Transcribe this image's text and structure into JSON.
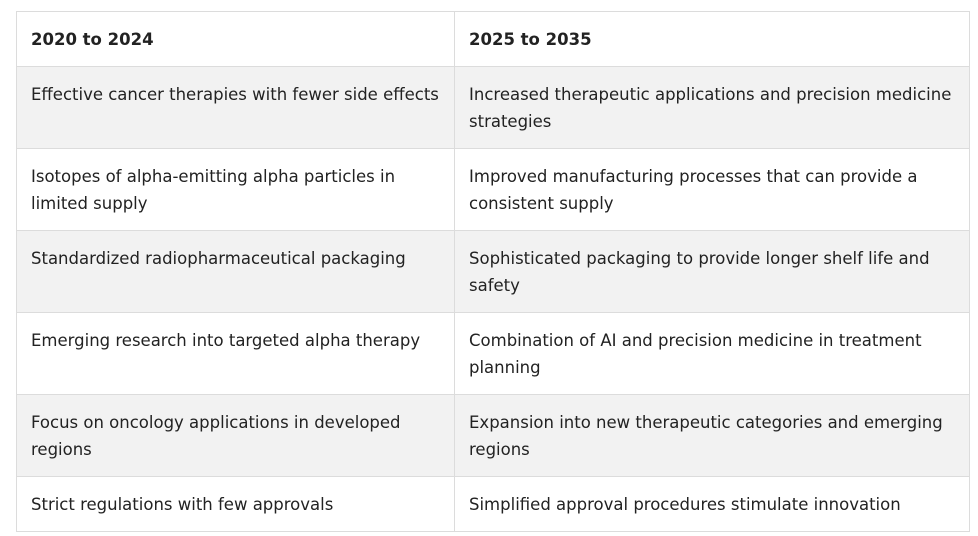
{
  "table": {
    "headers": [
      "2020 to 2024",
      "2025 to 2035"
    ],
    "rows": [
      [
        "Effective cancer therapies with fewer side effects",
        "Increased therapeutic applications and precision medicine strategies"
      ],
      [
        "Isotopes of alpha-emitting alpha particles in limited supply",
        "Improved manufacturing processes that can provide a consistent supply"
      ],
      [
        "Standardized radiopharmaceutical packaging",
        "Sophisticated packaging to provide longer shelf life and safety"
      ],
      [
        "Emerging research into targeted alpha therapy",
        "Combination of AI and precision medicine in treatment planning"
      ],
      [
        "Focus on oncology applications in developed regions",
        "Expansion into new therapeutic categories and emerging regions"
      ],
      [
        "Strict regulations with few approvals",
        "Simplified approval procedures stimulate innovation"
      ]
    ]
  }
}
